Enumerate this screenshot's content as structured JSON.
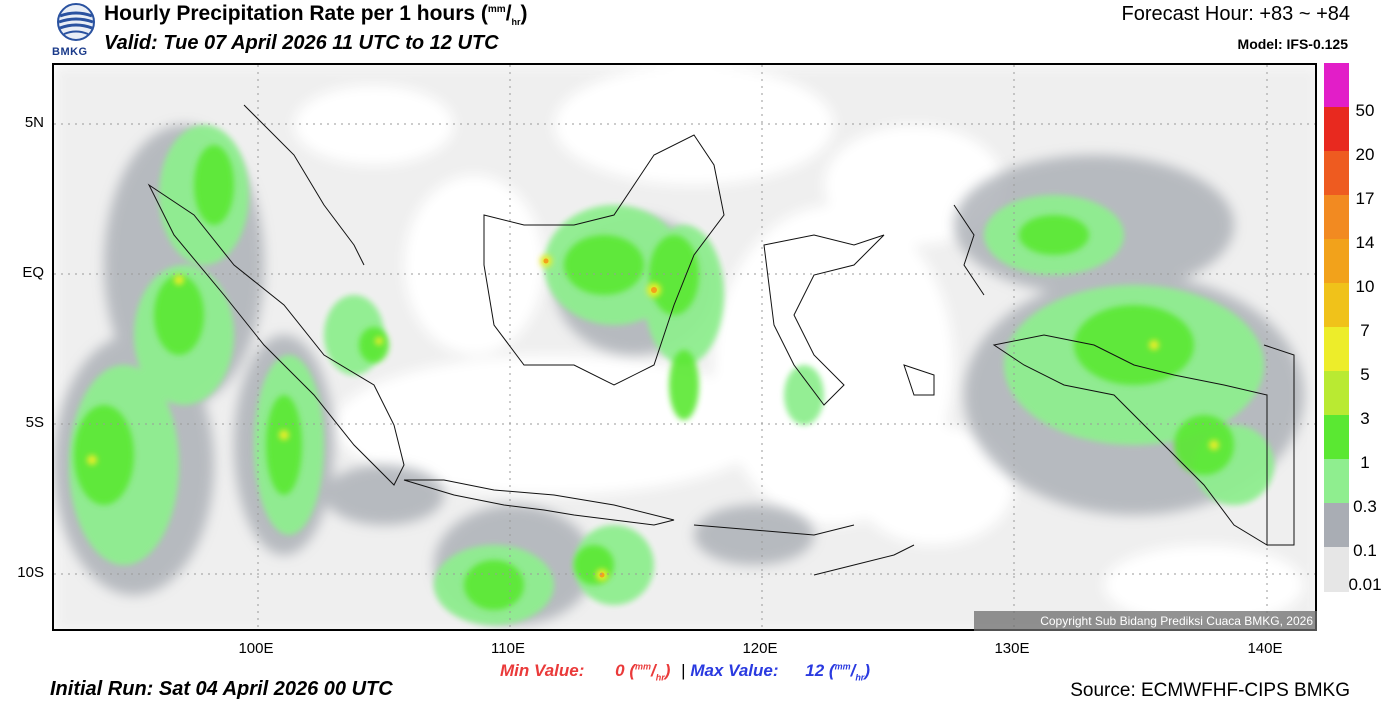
{
  "header": {
    "logo_text": "BMKG",
    "title_main": "Hourly Precipitation Rate per 1 hours (",
    "title_unit_num": "mm",
    "title_unit_den": "hr",
    "title_close": ")",
    "valid": "Valid: Tue 07 April 2026 11 UTC to 12 UTC",
    "forecast_hour": "Forecast Hour: +83 ~ +84",
    "model": "Model: IFS-0.125"
  },
  "axes": {
    "y_labels": [
      "5N",
      "EQ",
      "5S",
      "10S"
    ],
    "x_labels": [
      "100E",
      "110E",
      "120E",
      "130E",
      "140E"
    ]
  },
  "colorbar": {
    "labels": [
      "50",
      "20",
      "17",
      "14",
      "10",
      "7",
      "5",
      "3",
      "1",
      "0.3",
      "0.1",
      "0.01"
    ],
    "colors": [
      "#e21ec8",
      "#e8291f",
      "#ee5b20",
      "#f28a21",
      "#f2a21b",
      "#f0c21a",
      "#eded2a",
      "#b9ea32",
      "#5ae832",
      "#8fee8f",
      "#a9adb4",
      "#e6e6e6"
    ]
  },
  "footer": {
    "copyright": "Copyright Sub Bidang Prediksi Cuaca BMKG, 2026",
    "min_label": "Min Value:",
    "min_value": "0",
    "max_label": "Max Value:",
    "max_value": "12",
    "unit_num": "mm",
    "unit_den": "hr",
    "separator": "|",
    "initial_run": "Initial Run: Sat 04 April 2026 00 UTC",
    "source": "Source: ECMWFHF-CIPS BMKG"
  }
}
